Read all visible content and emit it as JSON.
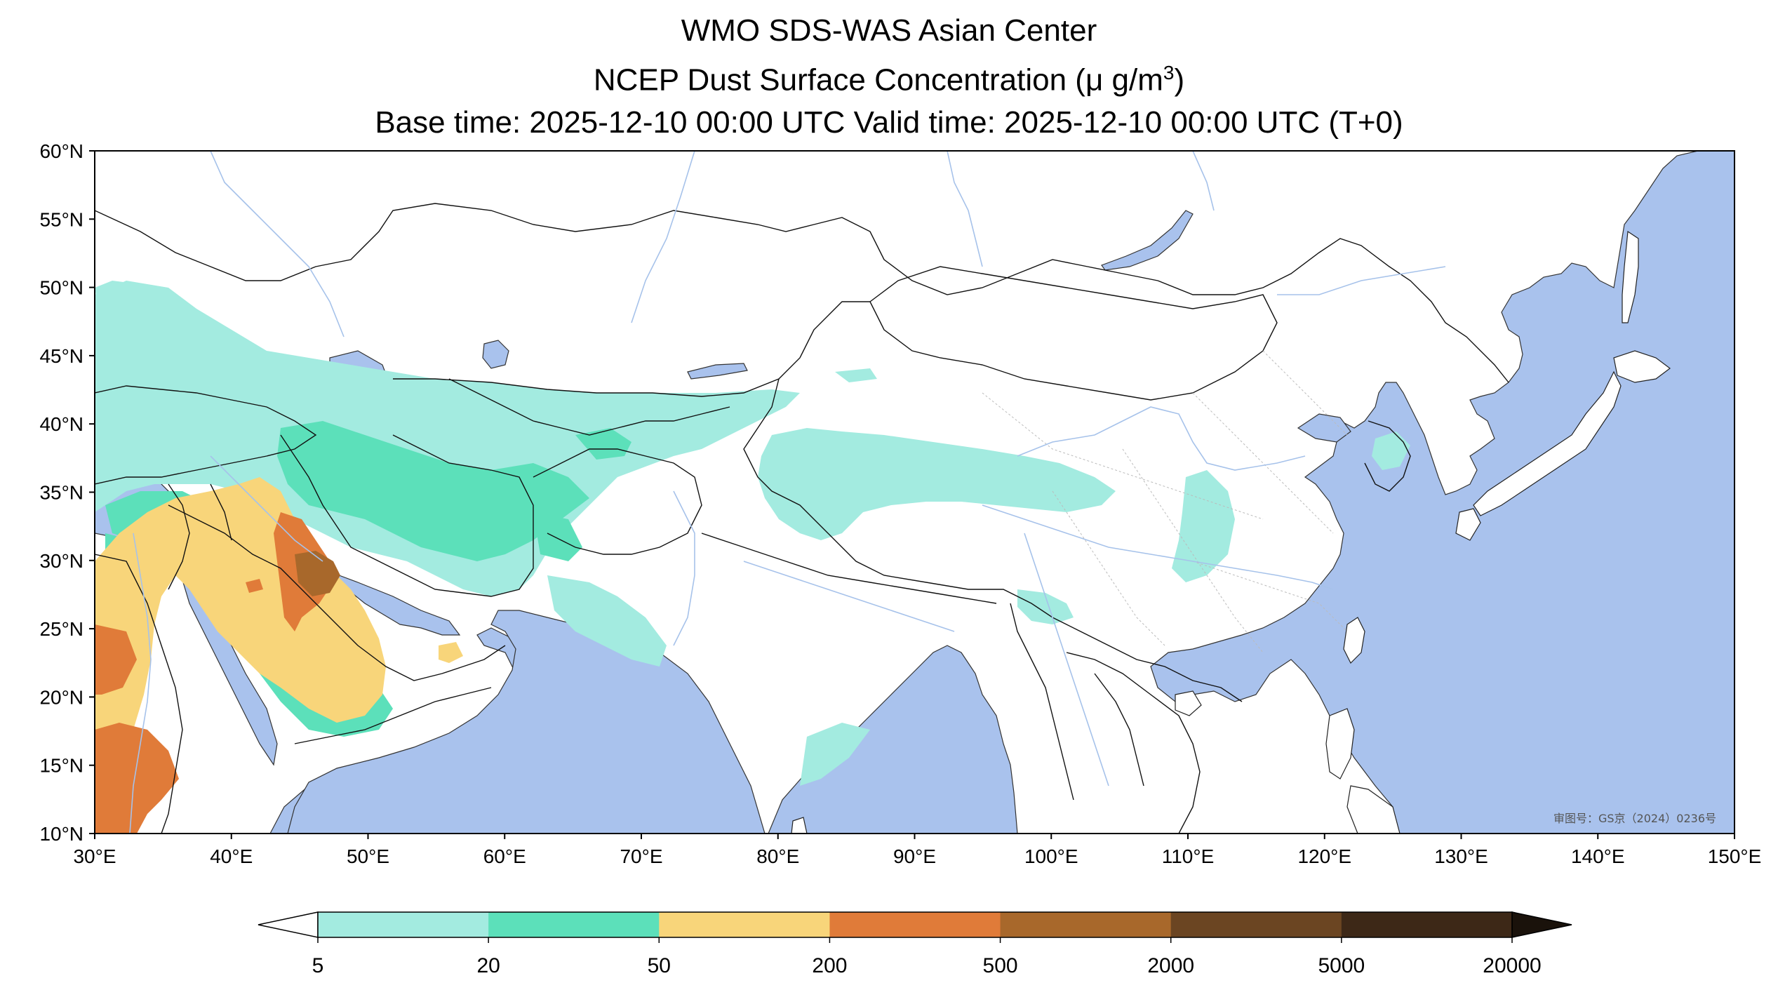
{
  "title": {
    "line1": "WMO SDS-WAS Asian Center",
    "line2_prefix": "NCEP Dust Surface Concentration (",
    "line2_unit": "μ g/m",
    "line2_sup": "3",
    "line2_suffix": ")",
    "line3": "Base time: 2025-12-10 00:00 UTC Valid time: 2025-12-10 00:00 UTC (T+0)"
  },
  "map": {
    "lon_range": [
      30,
      150
    ],
    "lat_range": [
      10,
      60
    ],
    "lon_ticks": [
      "30°E",
      "40°E",
      "50°E",
      "60°E",
      "70°E",
      "80°E",
      "90°E",
      "100°E",
      "110°E",
      "120°E",
      "130°E",
      "140°E",
      "150°E"
    ],
    "lat_ticks": [
      "60°N",
      "55°N",
      "50°N",
      "45°N",
      "40°N",
      "35°N",
      "30°N",
      "25°N",
      "20°N",
      "15°N",
      "10°N"
    ],
    "ocean_color": "#a9c2ed",
    "land_color": "#ffffff",
    "watermark": "审图号：GS京（2024）0236号"
  },
  "colorbar": {
    "levels": [
      "5",
      "20",
      "50",
      "200",
      "500",
      "2000",
      "5000",
      "20000"
    ],
    "colors": [
      "#a3ebe0",
      "#5ce0ba",
      "#f8d57a",
      "#e07b39",
      "#a8682b",
      "#6b4522",
      "#3d2817"
    ],
    "under_color": "#ffffff",
    "over_color": "#1a120b"
  }
}
